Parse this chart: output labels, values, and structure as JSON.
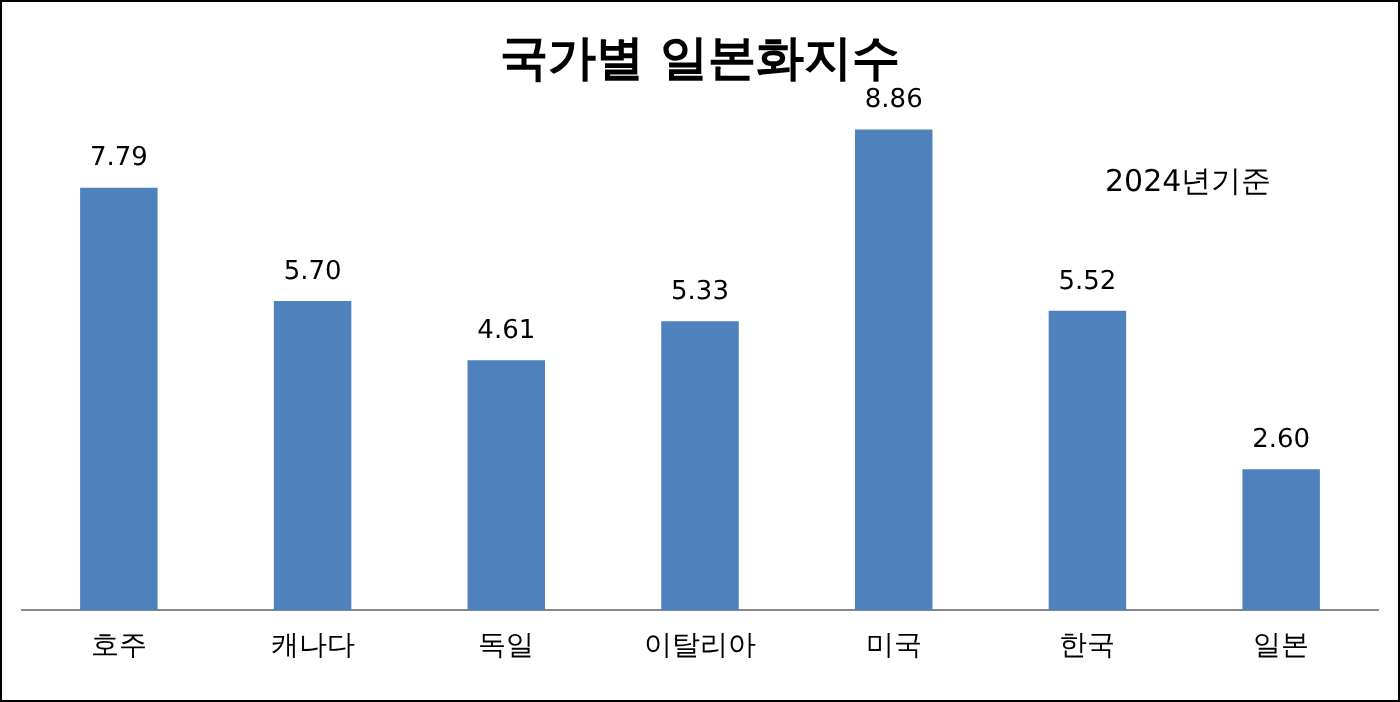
{
  "chart_data": {
    "type": "bar",
    "title": "국가별 일본화지수",
    "categories": [
      "호주",
      "캐나다",
      "독일",
      "이탈리아",
      "미국",
      "한국",
      "일본"
    ],
    "values": [
      7.79,
      5.7,
      4.61,
      5.33,
      8.86,
      5.52,
      2.6
    ],
    "value_labels": [
      "7.79",
      "5.70",
      "4.61",
      "5.33",
      "8.86",
      "5.52",
      "2.60"
    ],
    "color": "#4f81bd",
    "annotations": [
      "2024년기준"
    ],
    "tick_labels": "x",
    "grid": false,
    "legend": false
  }
}
